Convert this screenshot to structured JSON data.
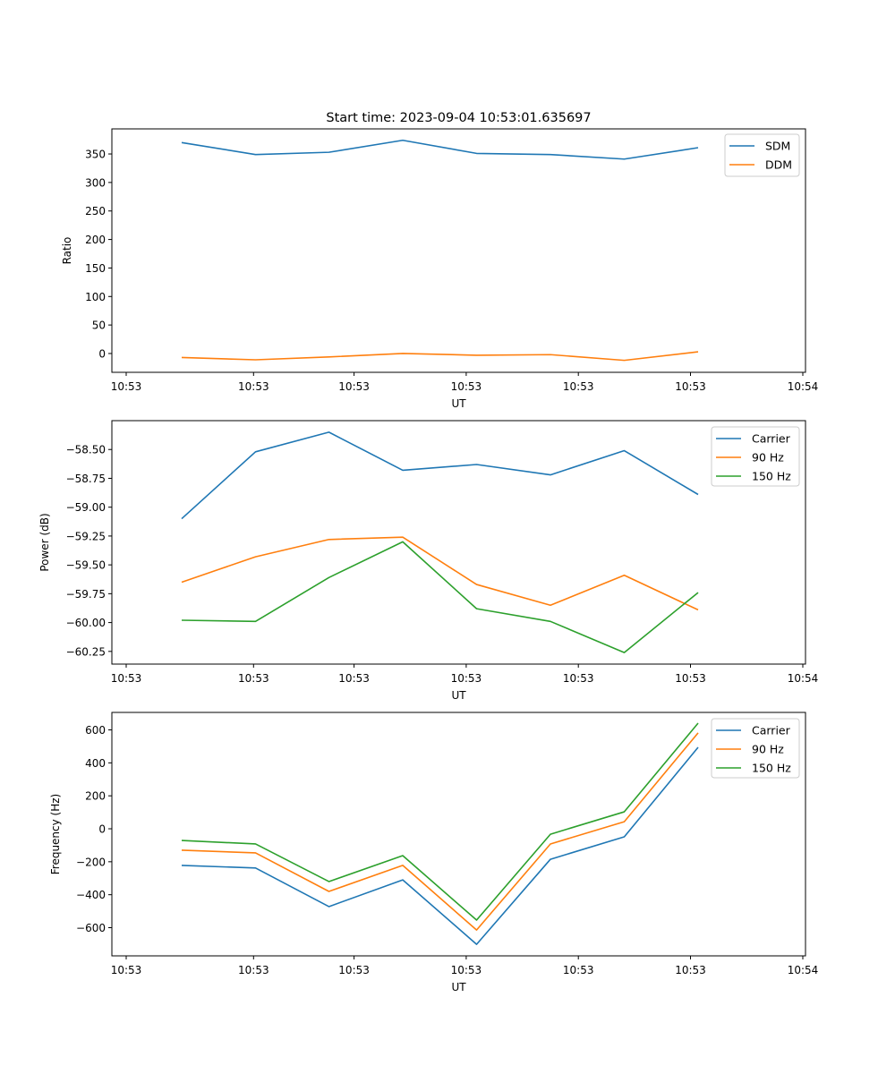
{
  "figure": {
    "title": "Start time: 2023-09-04 10:53:01.635697"
  },
  "chart_data": [
    {
      "type": "line",
      "title": "Start time: 2023-09-04 10:53:01.635697",
      "xlabel": "UT",
      "ylabel": "Ratio",
      "x_ticks": [
        "10:53",
        "10:53",
        "10:53",
        "10:53",
        "10:53",
        "10:53",
        "10:54"
      ],
      "x_index": [
        0,
        1,
        2,
        3,
        4,
        5,
        6,
        7
      ],
      "xlim": [
        -0.75,
        8.65
      ],
      "ylim": [
        -33,
        394
      ],
      "y_ticks": [
        0,
        50,
        100,
        150,
        200,
        250,
        300,
        350
      ],
      "y_tick_labels": [
        "0",
        "50",
        "100",
        "150",
        "200",
        "250",
        "300",
        "350"
      ],
      "legend": "top-right",
      "grid": false,
      "series": [
        {
          "name": "SDM",
          "color": "#1f77b4",
          "values": [
            370,
            349,
            353,
            374,
            351,
            349,
            341,
            361
          ]
        },
        {
          "name": "DDM",
          "color": "#ff7f0e",
          "values": [
            -7,
            -11,
            -6,
            0,
            -3,
            -2,
            -12,
            3
          ]
        }
      ]
    },
    {
      "type": "line",
      "title": "",
      "xlabel": "UT",
      "ylabel": "Power (dB)",
      "x_ticks": [
        "10:53",
        "10:53",
        "10:53",
        "10:53",
        "10:53",
        "10:53",
        "10:54"
      ],
      "x_index": [
        0,
        1,
        2,
        3,
        4,
        5,
        6,
        7
      ],
      "xlim": [
        -0.75,
        8.65
      ],
      "ylim": [
        -60.36,
        -58.25
      ],
      "y_ticks": [
        -60.25,
        -60.0,
        -59.75,
        -59.5,
        -59.25,
        -59.0,
        -58.75,
        -58.5
      ],
      "y_tick_labels": [
        "−60.25",
        "−60.00",
        "−59.75",
        "−59.50",
        "−59.25",
        "−59.00",
        "−58.75",
        "−58.50"
      ],
      "legend": "top-right",
      "grid": false,
      "series": [
        {
          "name": "Carrier",
          "color": "#1f77b4",
          "values": [
            -59.1,
            -58.52,
            -58.35,
            -58.68,
            -58.63,
            -58.72,
            -58.51,
            -58.89
          ]
        },
        {
          "name": "90 Hz",
          "color": "#ff7f0e",
          "values": [
            -59.65,
            -59.43,
            -59.28,
            -59.26,
            -59.67,
            -59.85,
            -59.59,
            -59.89
          ]
        },
        {
          "name": "150 Hz",
          "color": "#2ca02c",
          "values": [
            -59.98,
            -59.99,
            -59.61,
            -59.3,
            -59.88,
            -59.99,
            -60.26,
            -59.74
          ]
        }
      ]
    },
    {
      "type": "line",
      "title": "",
      "xlabel": "UT",
      "ylabel": "Frequency (Hz)",
      "x_ticks": [
        "10:53",
        "10:53",
        "10:53",
        "10:53",
        "10:53",
        "10:53",
        "10:54"
      ],
      "x_index": [
        0,
        1,
        2,
        3,
        4,
        5,
        6,
        7
      ],
      "xlim": [
        -0.75,
        8.65
      ],
      "ylim": [
        -771,
        706
      ],
      "y_ticks": [
        -600,
        -400,
        -200,
        0,
        200,
        400,
        600
      ],
      "y_tick_labels": [
        "−600",
        "−400",
        "−200",
        "0",
        "200",
        "400",
        "600"
      ],
      "legend": "top-right",
      "grid": false,
      "series": [
        {
          "name": "Carrier",
          "color": "#1f77b4",
          "values": [
            -222,
            -238,
            -472,
            -310,
            -701,
            -185,
            -49,
            494
          ]
        },
        {
          "name": "90 Hz",
          "color": "#ff7f0e",
          "values": [
            -130,
            -146,
            -380,
            -222,
            -614,
            -92,
            43,
            582
          ]
        },
        {
          "name": "150 Hz",
          "color": "#2ca02c",
          "values": [
            -71,
            -92,
            -320,
            -163,
            -554,
            -33,
            103,
            641
          ]
        }
      ]
    }
  ]
}
